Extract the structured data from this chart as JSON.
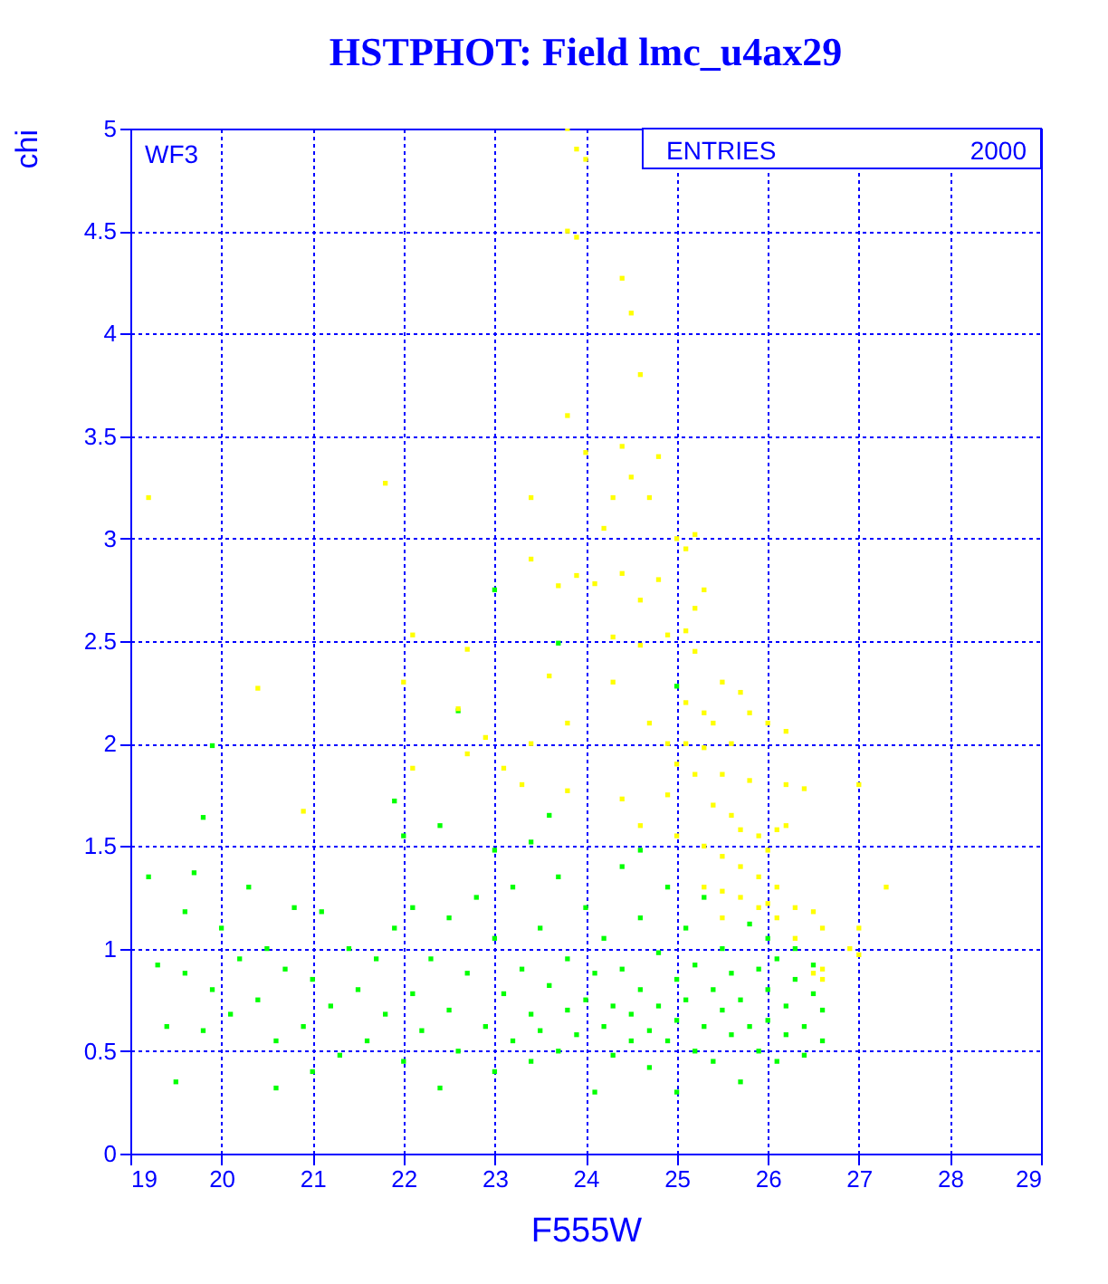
{
  "chart_data": {
    "type": "scatter",
    "title": "HSTPHOT: Field lmc_u4ax29",
    "xlabel": "F555W",
    "ylabel": "chi",
    "annotations": [
      "WF3",
      "ENTRIES",
      "2000"
    ],
    "xlim": [
      19,
      29
    ],
    "xticks": [
      19,
      20,
      21,
      22,
      23,
      24,
      25,
      26,
      27,
      28,
      29
    ],
    "ylim": [
      0,
      5
    ],
    "yticks": [
      0,
      0.5,
      1,
      1.5,
      2,
      2.5,
      3,
      3.5,
      4,
      4.5,
      5
    ],
    "grid": true,
    "marker": "square",
    "legend": false,
    "series": [
      {
        "color": "#00ff00",
        "x": [
          19.2,
          19.3,
          19.4,
          19.5,
          19.6,
          19.7,
          19.6,
          19.8,
          19.9,
          20.0,
          20.1,
          20.2,
          20.3,
          20.4,
          20.5,
          20.6,
          20.6,
          20.7,
          20.8,
          20.9,
          21.0,
          21.0,
          21.1,
          21.2,
          21.3,
          21.4,
          21.5,
          21.6,
          21.7,
          21.8,
          21.9,
          22.0,
          22.1,
          22.1,
          22.2,
          22.3,
          22.4,
          22.5,
          22.5,
          22.6,
          22.7,
          22.8,
          22.9,
          23.0,
          23.0,
          23.1,
          23.2,
          23.2,
          23.3,
          23.4,
          23.4,
          23.5,
          23.5,
          23.6,
          23.7,
          23.7,
          23.8,
          23.8,
          23.9,
          24.0,
          24.0,
          24.1,
          24.1,
          24.2,
          24.2,
          24.3,
          24.3,
          24.4,
          24.4,
          24.5,
          24.5,
          24.6,
          24.6,
          24.7,
          24.7,
          24.8,
          24.8,
          24.9,
          24.9,
          25.0,
          25.0,
          25.0,
          25.1,
          25.1,
          25.2,
          25.2,
          25.3,
          25.3,
          25.4,
          25.4,
          25.5,
          25.5,
          25.6,
          25.6,
          25.7,
          25.7,
          25.8,
          25.8,
          25.9,
          25.9,
          26.0,
          26.0,
          26.0,
          26.1,
          26.1,
          26.2,
          26.2,
          26.3,
          26.3,
          26.4,
          26.4,
          26.5,
          26.5,
          26.6,
          26.6,
          23.7,
          22.6,
          23.0,
          19.9,
          21.9,
          19.8,
          22.0,
          22.4,
          23.6,
          23.4,
          25.0,
          24.6,
          23.0
        ],
        "values": [
          1.35,
          0.92,
          0.62,
          0.35,
          0.88,
          1.37,
          1.18,
          0.6,
          0.8,
          1.1,
          0.68,
          0.95,
          1.3,
          0.75,
          1.0,
          0.55,
          0.32,
          0.9,
          1.2,
          0.62,
          0.85,
          0.4,
          1.18,
          0.72,
          0.48,
          1.0,
          0.8,
          0.55,
          0.95,
          0.68,
          1.1,
          0.45,
          0.78,
          1.2,
          0.6,
          0.95,
          0.32,
          1.15,
          0.7,
          0.5,
          0.88,
          1.25,
          0.62,
          0.4,
          1.05,
          0.78,
          0.55,
          1.3,
          0.9,
          0.68,
          0.45,
          1.1,
          0.6,
          0.82,
          1.35,
          0.5,
          0.7,
          0.95,
          0.58,
          1.2,
          0.75,
          0.3,
          0.88,
          0.62,
          1.05,
          0.48,
          0.72,
          1.4,
          0.9,
          0.55,
          0.68,
          1.15,
          0.8,
          0.6,
          0.42,
          0.98,
          0.72,
          1.3,
          0.55,
          0.85,
          0.3,
          0.65,
          1.1,
          0.75,
          0.5,
          0.92,
          0.62,
          1.25,
          0.8,
          0.45,
          0.7,
          1.0,
          0.58,
          0.88,
          0.35,
          0.75,
          1.12,
          0.62,
          0.9,
          0.5,
          0.8,
          1.05,
          0.65,
          0.45,
          0.95,
          0.72,
          0.58,
          1.0,
          0.85,
          0.62,
          0.48,
          0.78,
          0.92,
          0.55,
          0.7,
          2.49,
          2.16,
          2.75,
          1.99,
          1.72,
          1.64,
          1.55,
          1.6,
          1.65,
          1.52,
          2.28,
          1.48,
          1.48
        ]
      },
      {
        "color": "#ffff00",
        "x": [
          23.8,
          23.9,
          24.0,
          23.8,
          23.9,
          24.4,
          24.5,
          24.6,
          23.8,
          24.0,
          24.4,
          24.5,
          24.3,
          24.7,
          24.8,
          23.4,
          21.8,
          19.2,
          24.2,
          25.0,
          25.1,
          25.2,
          23.4,
          23.7,
          23.9,
          24.1,
          24.4,
          24.6,
          24.8,
          25.3,
          25.2,
          24.3,
          24.6,
          24.9,
          25.1,
          22.1,
          22.7,
          25.2,
          25.5,
          25.7,
          24.3,
          23.6,
          22.0,
          20.4,
          25.1,
          25.3,
          25.4,
          25.8,
          26.0,
          22.6,
          23.8,
          24.7,
          24.9,
          25.1,
          25.3,
          25.6,
          26.2,
          22.9,
          23.4,
          22.7,
          23.1,
          22.1,
          25.0,
          25.2,
          25.5,
          25.8,
          26.2,
          26.4,
          27.0,
          23.3,
          23.8,
          24.4,
          24.6,
          24.9,
          25.4,
          25.6,
          25.7,
          25.9,
          26.1,
          26.2,
          20.9,
          25.0,
          25.3,
          25.5,
          25.7,
          25.9,
          26.0,
          26.1,
          25.3,
          25.5,
          25.7,
          25.9,
          26.0,
          26.1,
          26.3,
          26.5,
          26.6,
          27.3,
          27.0,
          27.0,
          26.9,
          26.6,
          26.3,
          25.5,
          26.5,
          26.6
        ],
        "values": [
          5.0,
          4.9,
          4.85,
          4.5,
          4.47,
          4.27,
          4.1,
          3.8,
          3.6,
          3.42,
          3.45,
          3.3,
          3.2,
          3.2,
          3.4,
          3.2,
          3.27,
          3.2,
          3.05,
          3.0,
          2.95,
          3.02,
          2.9,
          2.77,
          2.82,
          2.78,
          2.83,
          2.7,
          2.8,
          2.75,
          2.66,
          2.52,
          2.48,
          2.53,
          2.55,
          2.53,
          2.46,
          2.45,
          2.3,
          2.25,
          2.3,
          2.33,
          2.3,
          2.27,
          2.2,
          2.15,
          2.1,
          2.15,
          2.1,
          2.17,
          2.1,
          2.1,
          2.0,
          2.0,
          1.98,
          2.0,
          2.06,
          2.03,
          2.0,
          1.95,
          1.88,
          1.88,
          1.9,
          1.85,
          1.85,
          1.82,
          1.8,
          1.78,
          1.8,
          1.8,
          1.77,
          1.73,
          1.6,
          1.75,
          1.7,
          1.65,
          1.58,
          1.55,
          1.58,
          1.6,
          1.67,
          1.55,
          1.5,
          1.45,
          1.4,
          1.35,
          1.48,
          1.3,
          1.3,
          1.28,
          1.25,
          1.2,
          1.22,
          1.15,
          1.2,
          1.18,
          1.1,
          1.3,
          1.1,
          0.97,
          1.0,
          0.9,
          1.05,
          1.15,
          0.88,
          0.85
        ]
      }
    ]
  }
}
